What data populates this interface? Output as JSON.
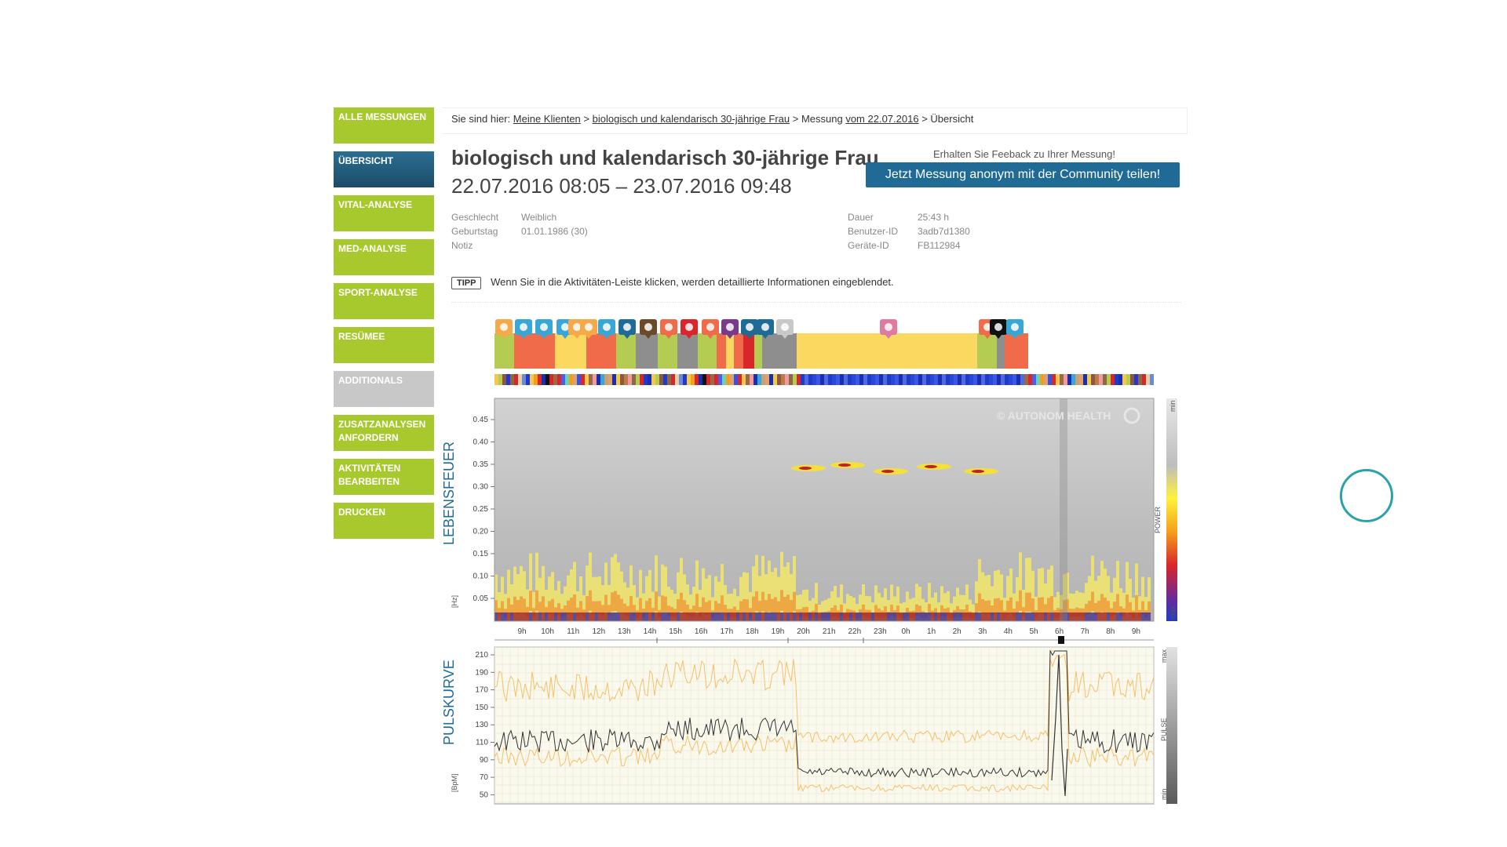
{
  "sidebar": {
    "items": [
      {
        "label": "ALLE MESSUNGEN",
        "style": "green"
      },
      {
        "label": "ÜBERSICHT",
        "style": "active"
      },
      {
        "label": "VITAL-ANALYSE",
        "style": "green"
      },
      {
        "label": "MED-ANALYSE",
        "style": "green"
      },
      {
        "label": "SPORT-ANALYSE",
        "style": "green"
      },
      {
        "label": "RESÜMEE",
        "style": "green"
      },
      {
        "label": "ADDITIONALS",
        "style": "gray"
      },
      {
        "label": "ZUSATZANALYSEN ANFORDERN",
        "style": "green"
      },
      {
        "label": "AKTIVITÄTEN BEARBEITEN",
        "style": "green"
      },
      {
        "label": "DRUCKEN",
        "style": "green"
      }
    ]
  },
  "breadcrumb": {
    "prefix": "Sie sind hier:",
    "sep": ">",
    "link1": "Meine Klienten",
    "link2": "biologisch und kalendarisch 30-jährige Frau",
    "link3_plain": "Messung",
    "link3": "vom 22.07.2016",
    "current": "Übersicht"
  },
  "header": {
    "title": "biologisch und kalendarisch 30-jährige Frau",
    "daterange": "22.07.2016 08:05 – 23.07.2016 09:48",
    "share_hint": "Erhalten Sie Feeback zu Ihrer Messung!",
    "share_button": "Jetzt Messung anonym mit der Community teilen!"
  },
  "meta_left": [
    {
      "key": "Geschlecht",
      "value": "Weiblich"
    },
    {
      "key": "Geburtstag",
      "value": "01.01.1986 (30)"
    },
    {
      "key": "Notiz",
      "value": ""
    }
  ],
  "meta_right": [
    {
      "key": "Dauer",
      "value": "25:43 h"
    },
    {
      "key": "Benutzer-ID",
      "value": "3adb7d1380"
    },
    {
      "key": "Geräte-ID",
      "value": "FB112984"
    }
  ],
  "tipp": {
    "badge": "TIPP",
    "text": "Wenn Sie in die Aktivitäten-Leiste klicken, werden detaillierte Informationen eingeblendet."
  },
  "colors": {
    "green": "#a8c92e",
    "active": "#1c4c68",
    "share": "#1f6b96",
    "yellow": "#fbd961",
    "orange": "#ef6b4a",
    "lime": "#b4cc52",
    "gray": "#8e8e8e",
    "red": "#d9262a",
    "accent": "#2aa3a8"
  },
  "activity_icons": [
    "sun-icon",
    "brain-icon",
    "brain-icon",
    "brain-icon",
    "sun-icon",
    "sun-icon",
    "brain-icon",
    "laptop-icon",
    "walk-icon",
    "run-icon",
    "question-icon",
    "run-icon",
    "lying-icon",
    "laptop-icon",
    "laptop-icon",
    "chat-icon",
    "bed-icon",
    "run-icon",
    "close-circle-icon",
    "brain-icon"
  ],
  "spectrogram": {
    "ylabel": "LEBENSFEUER",
    "unit": "[Hz]",
    "yticks": [
      "0.45",
      "0.40",
      "0.35",
      "0.30",
      "0.25",
      "0.20",
      "0.15",
      "0.10",
      "0.05"
    ],
    "watermark": "© AUTONOM HEALTH",
    "legend_top": "min",
    "legend_mid": "POWER",
    "legend_bottom": "max"
  },
  "time_axis": [
    "9h",
    "10h",
    "11h",
    "12h",
    "13h",
    "14h",
    "15h",
    "16h",
    "17h",
    "18h",
    "19h",
    "20h",
    "21h",
    "22h",
    "23h",
    "0h",
    "1h",
    "2h",
    "3h",
    "4h",
    "5h",
    "6h",
    "7h",
    "8h",
    "9h"
  ],
  "pulse": {
    "ylabel": "PULSKURVE",
    "unit": "[BpM]",
    "yticks": [
      "210",
      "190",
      "170",
      "150",
      "130",
      "110",
      "90",
      "70",
      "50"
    ],
    "legend_top": "max",
    "legend_mid": "PULSE",
    "legend_bottom": "min"
  }
}
